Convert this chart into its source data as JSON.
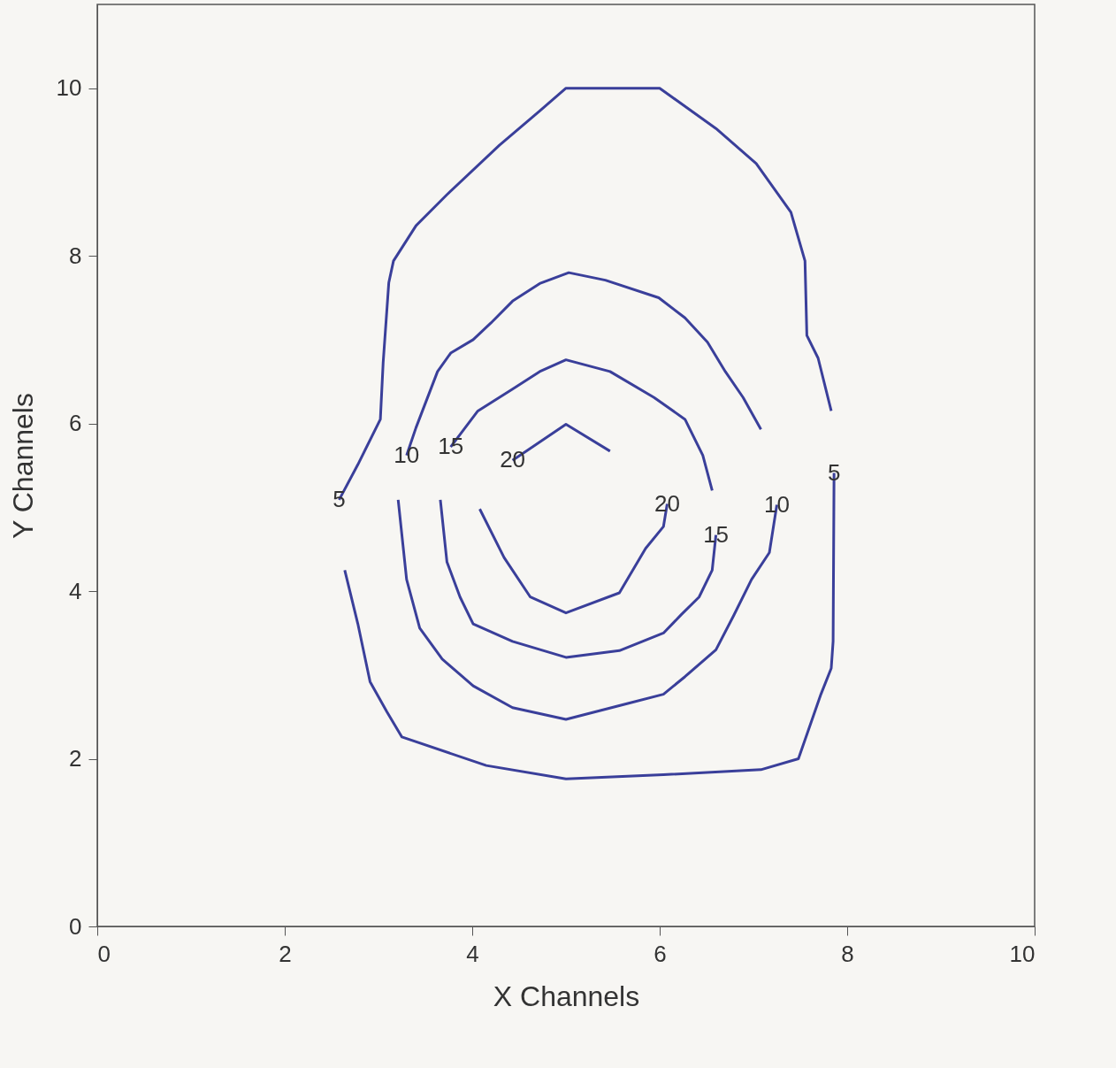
{
  "chart_data": {
    "type": "line",
    "xlabel": "X Channels",
    "ylabel": "Y Channels",
    "xlim": [
      0,
      10
    ],
    "ylim": [
      0,
      11
    ],
    "xticks": [
      0,
      2,
      4,
      6,
      8,
      10
    ],
    "yticks": [
      0,
      2,
      4,
      6,
      8,
      10
    ],
    "grid": false,
    "legend": false,
    "marker": "none",
    "line_style": "solid",
    "series": [
      {
        "name": "5",
        "color": "#3a3f9a",
        "x": [
          2.58,
          2.78,
          3.02,
          3.05,
          3.11,
          3.16,
          3.4,
          3.73,
          4.29,
          4.72,
          5.0,
          6.0,
          6.6,
          7.03,
          7.4,
          7.55,
          7.57,
          7.69,
          7.83
        ],
        "values": [
          5.09,
          5.51,
          6.05,
          6.73,
          7.68,
          7.94,
          8.36,
          8.73,
          9.32,
          9.73,
          10.0,
          10.0,
          9.52,
          9.1,
          8.52,
          7.94,
          7.05,
          6.78,
          6.15
        ]
      },
      {
        "name": "5",
        "color": "#3a3f9a",
        "x": [
          2.64,
          2.78,
          2.91,
          3.09,
          3.25,
          4.15,
          5.0,
          6.04,
          7.08,
          7.48,
          7.72,
          7.83,
          7.85,
          7.86
        ],
        "values": [
          4.25,
          3.61,
          2.92,
          2.56,
          2.26,
          1.92,
          1.76,
          1.81,
          1.87,
          2.0,
          2.77,
          3.08,
          3.4,
          5.41
        ]
      },
      {
        "name": "10",
        "color": "#3a3f9a",
        "x": [
          3.3,
          3.4,
          3.63,
          3.77,
          4.01,
          4.2,
          4.43,
          4.72,
          5.03,
          5.42,
          5.99,
          6.27,
          6.51,
          6.7,
          6.89,
          7.08
        ],
        "values": [
          5.62,
          5.95,
          6.62,
          6.84,
          7.0,
          7.2,
          7.46,
          7.67,
          7.8,
          7.71,
          7.5,
          7.26,
          6.97,
          6.62,
          6.31,
          5.93
        ]
      },
      {
        "name": "10",
        "color": "#3a3f9a",
        "x": [
          3.21,
          3.3,
          3.44,
          3.68,
          4.01,
          4.43,
          5.0,
          5.66,
          6.04,
          6.27,
          6.6,
          6.79,
          6.98,
          7.17,
          7.25
        ],
        "values": [
          5.09,
          4.14,
          3.56,
          3.19,
          2.87,
          2.61,
          2.47,
          2.66,
          2.77,
          2.98,
          3.3,
          3.71,
          4.14,
          4.46,
          5.03
        ]
      },
      {
        "name": "15",
        "color": "#3a3f9a",
        "x": [
          3.77,
          4.06,
          4.43,
          4.72,
          5.0,
          5.47,
          5.94,
          6.27,
          6.46,
          6.56
        ],
        "values": [
          5.72,
          6.15,
          6.41,
          6.62,
          6.76,
          6.62,
          6.31,
          6.05,
          5.62,
          5.2
        ]
      },
      {
        "name": "15",
        "color": "#3a3f9a",
        "x": [
          3.66,
          3.73,
          3.87,
          4.01,
          4.43,
          5.0,
          5.57,
          6.04,
          6.23,
          6.42,
          6.56,
          6.6
        ],
        "values": [
          5.09,
          4.35,
          3.93,
          3.61,
          3.4,
          3.21,
          3.29,
          3.5,
          3.72,
          3.93,
          4.25,
          4.67
        ]
      },
      {
        "name": "20",
        "color": "#3a3f9a",
        "x": [
          4.43,
          5.0,
          5.47
        ],
        "values": [
          5.56,
          5.99,
          5.67
        ]
      },
      {
        "name": "20",
        "color": "#3a3f9a",
        "x": [
          4.08,
          4.34,
          4.62,
          5.0,
          5.57,
          5.85,
          6.04,
          6.08
        ],
        "values": [
          4.98,
          4.4,
          3.93,
          3.74,
          3.98,
          4.51,
          4.77,
          5.04
        ]
      }
    ]
  }
}
